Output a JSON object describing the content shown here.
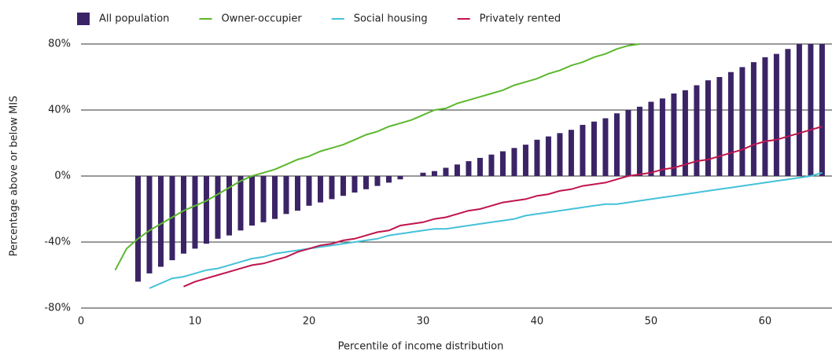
{
  "chart_data": {
    "type": "combo",
    "x_label": "Percentile of income distribution",
    "y_label": "Percentage above or below MIS",
    "xlim": [
      0,
      65.8
    ],
    "ylim": [
      -80,
      80
    ],
    "xticks": [
      0,
      10,
      20,
      30,
      40,
      50,
      60
    ],
    "yticks": [
      {
        "value": -80,
        "label": "-80%"
      },
      {
        "value": -40,
        "label": "-40%"
      },
      {
        "value": 0,
        "label": "0%"
      },
      {
        "value": 40,
        "label": "40%"
      },
      {
        "value": 80,
        "label": "80%"
      }
    ],
    "grid": true,
    "legend": "top-left",
    "series": [
      {
        "name": "All population",
        "type": "bar",
        "color": "#3b2466",
        "x": [
          5,
          6,
          7,
          8,
          9,
          10,
          11,
          12,
          13,
          14,
          15,
          16,
          17,
          18,
          19,
          20,
          21,
          22,
          23,
          24,
          25,
          26,
          27,
          28,
          29,
          30,
          31,
          32,
          33,
          34,
          35,
          36,
          37,
          38,
          39,
          40,
          41,
          42,
          43,
          44,
          45,
          46,
          47,
          48,
          49,
          50,
          51,
          52,
          53,
          54,
          55,
          56,
          57,
          58,
          59,
          60,
          61,
          62,
          63,
          64,
          65
        ],
        "values": [
          -64,
          -59,
          -55,
          -51,
          -47,
          -44,
          -41,
          -38,
          -36,
          -33,
          -30,
          -28,
          -26,
          -23,
          -21,
          -18,
          -16,
          -14,
          -12,
          -10,
          -8,
          -6,
          -4,
          -2,
          null,
          2,
          3,
          5,
          7,
          9,
          11,
          13,
          15,
          17,
          19,
          22,
          24,
          26,
          28,
          31,
          33,
          35,
          38,
          40,
          42,
          45,
          47,
          50,
          52,
          55,
          58,
          60,
          63,
          66,
          69,
          72,
          74,
          77,
          80,
          80,
          80
        ]
      },
      {
        "name": "Owner-occupier",
        "type": "line",
        "color": "#5cb82e",
        "x": [
          3,
          4,
          5,
          6,
          7,
          8,
          9,
          10,
          11,
          12,
          13,
          14,
          15,
          16,
          17,
          18,
          19,
          20,
          21,
          22,
          23,
          24,
          25,
          26,
          27,
          28,
          29,
          30,
          31,
          32,
          33,
          34,
          35,
          36,
          37,
          38,
          39,
          40,
          41,
          42,
          43,
          44,
          45,
          46,
          47,
          48,
          49
        ],
        "values": [
          -57,
          -44,
          -38,
          -33,
          -29,
          -25,
          -21,
          -18,
          -15,
          -11,
          -7,
          -3,
          0,
          2,
          4,
          7,
          10,
          12,
          15,
          17,
          19,
          22,
          25,
          27,
          30,
          32,
          34,
          37,
          40,
          41,
          44,
          46,
          48,
          50,
          52,
          55,
          57,
          59,
          62,
          64,
          67,
          69,
          72,
          74,
          77,
          79,
          80
        ]
      },
      {
        "name": "Social housing",
        "type": "line",
        "color": "#45c1d9",
        "x": [
          6,
          7,
          8,
          9,
          10,
          11,
          12,
          13,
          14,
          15,
          16,
          17,
          18,
          19,
          20,
          21,
          22,
          23,
          24,
          25,
          26,
          27,
          28,
          29,
          30,
          31,
          32,
          33,
          34,
          35,
          36,
          37,
          38,
          39,
          40,
          41,
          42,
          43,
          44,
          45,
          46,
          47,
          48,
          49,
          50,
          51,
          52,
          53,
          54,
          55,
          56,
          57,
          58,
          59,
          60,
          61,
          62,
          63,
          64,
          65
        ],
        "values": [
          -68,
          -65,
          -62,
          -61,
          -59,
          -57,
          -56,
          -54,
          -52,
          -50,
          -49,
          -47,
          -46,
          -45,
          -44,
          -43,
          -42,
          -41,
          -40,
          -39,
          -38,
          -36,
          -35,
          -34,
          -33,
          -32,
          -32,
          -31,
          -30,
          -29,
          -28,
          -27,
          -26,
          -24,
          -23,
          -22,
          -21,
          -20,
          -19,
          -18,
          -17,
          -17,
          -16,
          -15,
          -14,
          -13,
          -12,
          -11,
          -10,
          -9,
          -8,
          -7,
          -6,
          -5,
          -4,
          -3,
          -2,
          -1,
          0,
          2
        ]
      },
      {
        "name": "Privately rented",
        "type": "line",
        "color": "#c0144c",
        "x": [
          9,
          10,
          11,
          12,
          13,
          14,
          15,
          16,
          17,
          18,
          19,
          20,
          21,
          22,
          23,
          24,
          25,
          26,
          27,
          28,
          29,
          30,
          31,
          32,
          33,
          34,
          35,
          36,
          37,
          38,
          39,
          40,
          41,
          42,
          43,
          44,
          45,
          46,
          47,
          48,
          49,
          50,
          51,
          52,
          53,
          54,
          55,
          56,
          57,
          58,
          59,
          60,
          61,
          62,
          63,
          64,
          65
        ],
        "values": [
          -67,
          -64,
          -62,
          -60,
          -58,
          -56,
          -54,
          -53,
          -51,
          -49,
          -46,
          -44,
          -42,
          -41,
          -39,
          -38,
          -36,
          -34,
          -33,
          -30,
          -29,
          -28,
          -26,
          -25,
          -23,
          -21,
          -20,
          -18,
          -16,
          -15,
          -14,
          -12,
          -11,
          -9,
          -8,
          -6,
          -5,
          -4,
          -2,
          0,
          1,
          2,
          4,
          5,
          7,
          9,
          10,
          12,
          14,
          16,
          19,
          21,
          22,
          24,
          26,
          28,
          30
        ]
      }
    ]
  }
}
